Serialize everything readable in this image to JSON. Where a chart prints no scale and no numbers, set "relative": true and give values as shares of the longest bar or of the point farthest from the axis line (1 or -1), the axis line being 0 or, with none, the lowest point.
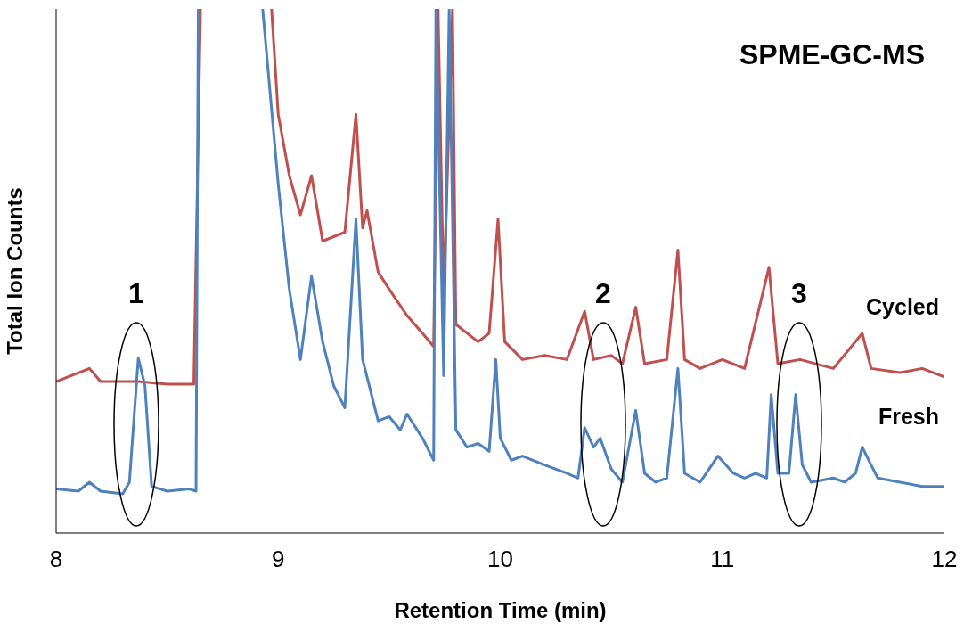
{
  "chart_data": {
    "type": "line",
    "title": "SPME-GC-MS",
    "xlabel": "Retention Time (min)",
    "ylabel": "Total Ion Counts",
    "relative": true,
    "marker": "none",
    "xlim": [
      8,
      12
    ],
    "xticks": [
      8,
      9,
      10,
      11,
      12
    ],
    "series": [
      {
        "name": "Cycled",
        "color": "#c0504d",
        "x": [
          8.0,
          8.15,
          8.2,
          8.37,
          8.5,
          8.62,
          8.65,
          8.8,
          8.97,
          9.0,
          9.05,
          9.1,
          9.15,
          9.2,
          9.3,
          9.35,
          9.38,
          9.4,
          9.45,
          9.5,
          9.58,
          9.65,
          9.7,
          9.72,
          9.745,
          9.785,
          9.8,
          9.9,
          9.95,
          9.99,
          10.02,
          10.1,
          10.2,
          10.3,
          10.38,
          10.42,
          10.5,
          10.55,
          10.61,
          10.65,
          10.75,
          10.8,
          10.83,
          10.9,
          11.0,
          11.1,
          11.21,
          11.25,
          11.35,
          11.5,
          11.63,
          11.67,
          11.8,
          11.9,
          12.0
        ],
        "values": [
          0.289,
          0.314,
          0.289,
          0.289,
          0.284,
          0.284,
          1,
          null,
          1,
          0.799,
          0.682,
          0.607,
          0.682,
          0.557,
          0.574,
          0.799,
          0.582,
          0.615,
          0.498,
          0.465,
          0.415,
          0.381,
          0.356,
          1,
          0.45,
          1,
          0.398,
          0.365,
          0.381,
          0.599,
          0.365,
          0.331,
          0.339,
          0.331,
          0.423,
          0.331,
          0.339,
          0.323,
          0.431,
          0.323,
          0.331,
          0.54,
          0.331,
          0.314,
          0.331,
          0.314,
          0.507,
          0.323,
          0.331,
          0.314,
          0.381,
          0.314,
          0.306,
          0.314,
          0.298
        ]
      },
      {
        "name": "Fresh",
        "color": "#4f81bd",
        "x": [
          8.0,
          8.1,
          8.15,
          8.2,
          8.3,
          8.33,
          8.37,
          8.4,
          8.43,
          8.5,
          8.6,
          8.63,
          8.64,
          8.8,
          8.93,
          9.0,
          9.05,
          9.1,
          9.15,
          9.2,
          9.25,
          9.3,
          9.35,
          9.38,
          9.4,
          9.45,
          9.5,
          9.55,
          9.58,
          9.65,
          9.7,
          9.71,
          9.745,
          9.77,
          9.8,
          9.85,
          9.9,
          9.95,
          9.98,
          10.0,
          10.05,
          10.1,
          10.2,
          10.3,
          10.35,
          10.38,
          10.42,
          10.45,
          10.5,
          10.55,
          10.61,
          10.65,
          10.7,
          10.75,
          10.8,
          10.83,
          10.9,
          10.98,
          11.05,
          11.1,
          11.15,
          11.2,
          11.22,
          11.25,
          11.3,
          11.33,
          11.36,
          11.4,
          11.5,
          11.55,
          11.6,
          11.63,
          11.67,
          11.7,
          11.8,
          11.9,
          12.0
        ],
        "values": [
          0.084,
          0.08,
          0.097,
          0.08,
          0.075,
          0.097,
          0.334,
          0.281,
          0.089,
          0.08,
          0.084,
          0.08,
          1,
          null,
          1,
          0.666,
          0.465,
          0.331,
          0.49,
          0.365,
          0.281,
          0.239,
          0.599,
          0.331,
          0.298,
          0.214,
          0.222,
          0.197,
          0.227,
          0.181,
          0.139,
          1,
          0.3,
          1,
          0.197,
          0.164,
          0.171,
          0.156,
          0.331,
          0.181,
          0.139,
          0.147,
          0.13,
          0.114,
          0.105,
          0.201,
          0.164,
          0.181,
          0.122,
          0.097,
          0.234,
          0.114,
          0.097,
          0.105,
          0.314,
          0.114,
          0.097,
          0.147,
          0.114,
          0.105,
          0.114,
          0.105,
          0.264,
          0.114,
          0.114,
          0.264,
          0.13,
          0.097,
          0.105,
          0.097,
          0.114,
          0.164,
          0.13,
          0.105,
          0.097,
          0.089,
          0.089
        ]
      }
    ],
    "annotations": [
      "1",
      "2",
      "3"
    ]
  }
}
